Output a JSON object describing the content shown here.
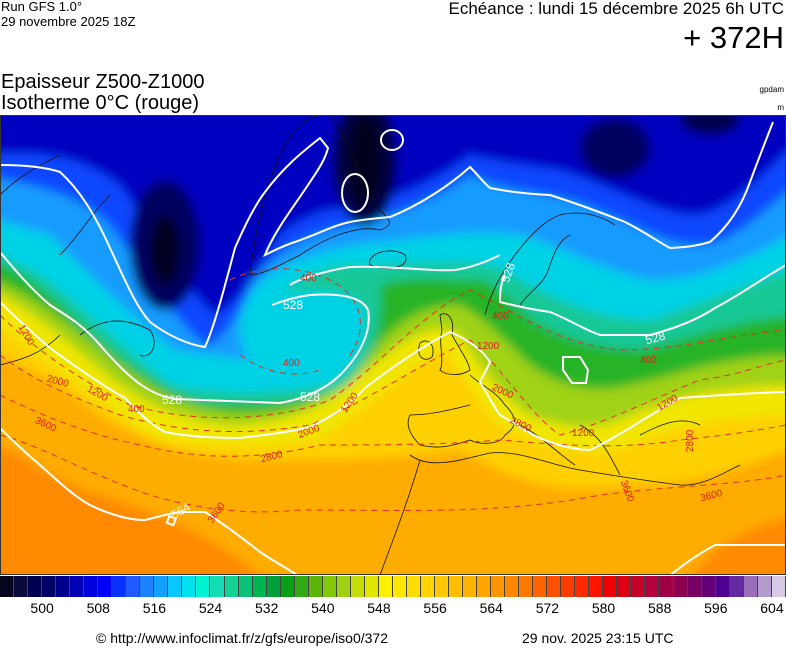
{
  "header": {
    "run": "Run GFS 1.0°",
    "run_date": "29 novembre 2025 18Z",
    "valid_time": "Echéance : lundi 15 décembre 2025 6h UTC",
    "lead_time": "+ 372H",
    "title_line1": "Epaisseur Z500-Z1000",
    "title_line2": "Isotherme 0°C (rouge)",
    "unit_thickness": "gpdam",
    "unit_iso0": "m"
  },
  "map": {
    "thickness_labels": [
      "528",
      "528",
      "528",
      "528",
      "528",
      "564"
    ],
    "iso0_labels": [
      "400",
      "400",
      "400",
      "400",
      "400",
      "1200",
      "1200",
      "1200",
      "1200",
      "1200",
      "1200",
      "2000",
      "2000",
      "2000",
      "2800",
      "2800",
      "2800",
      "3600",
      "3600",
      "3600",
      "3600"
    ],
    "contour_color": "#ffffff",
    "iso0_color": "#e41a1a"
  },
  "colorbar": {
    "min": 494,
    "max": 606,
    "tick_labels": [
      "500",
      "508",
      "516",
      "524",
      "532",
      "540",
      "548",
      "556",
      "564",
      "572",
      "580",
      "588",
      "596",
      "604"
    ],
    "colors": [
      "#05051e",
      "#0a0a3c",
      "#000050",
      "#000064",
      "#00008c",
      "#0000b4",
      "#0000dc",
      "#0000fa",
      "#0a32ff",
      "#1e5aff",
      "#1e82ff",
      "#14a0ff",
      "#0ac8ff",
      "#00e1f0",
      "#00f0d2",
      "#14dcb4",
      "#14d296",
      "#0ac378",
      "#00b450",
      "#00a03c",
      "#0aa014",
      "#32aa14",
      "#5ab40a",
      "#82c80a",
      "#a0d214",
      "#c3dc0a",
      "#e1e600",
      "#fff000",
      "#ffe600",
      "#ffdc00",
      "#ffd200",
      "#ffc800",
      "#ffbe00",
      "#ffb400",
      "#ffa500",
      "#ff9600",
      "#ff8700",
      "#ff7800",
      "#ff6400",
      "#ff5000",
      "#ff3c00",
      "#ff2800",
      "#ff1400",
      "#f00000",
      "#dc0014",
      "#c80028",
      "#b4003c",
      "#a00046",
      "#8c0050",
      "#780064",
      "#640078",
      "#500090",
      "#6428a0",
      "#9b6eb9",
      "#b49bcd",
      "#d7c8e6"
    ]
  },
  "footer": {
    "copyright": "© http://www.infoclimat.fr/z/gfs/europe/iso0/372",
    "generated": "29 nov. 2025 23:15 UTC"
  }
}
